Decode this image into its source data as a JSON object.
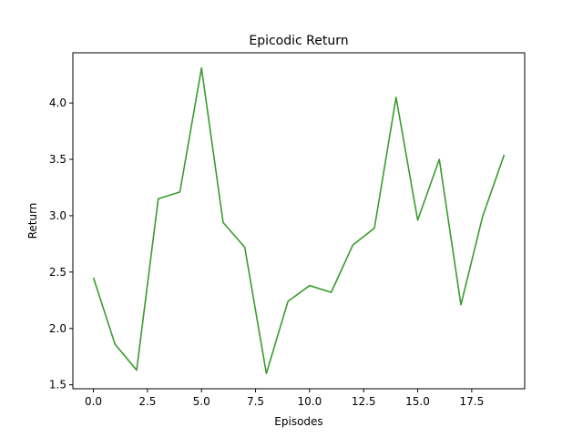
{
  "chart_data": {
    "type": "line",
    "title": "Epicodic Return",
    "xlabel": "Episodes",
    "ylabel": "Return",
    "xlim": [
      -0.95,
      19.95
    ],
    "ylim": [
      1.465,
      4.445
    ],
    "grid": false,
    "xticks": [
      0.0,
      2.5,
      5.0,
      7.5,
      10.0,
      12.5,
      15.0,
      17.5
    ],
    "xtick_labels": [
      "0.0",
      "2.5",
      "5.0",
      "7.5",
      "10.0",
      "12.5",
      "15.0",
      "17.5"
    ],
    "yticks": [
      1.5,
      2.0,
      2.5,
      3.0,
      3.5,
      4.0
    ],
    "ytick_labels": [
      "1.5",
      "2.0",
      "2.5",
      "3.0",
      "3.5",
      "4.0"
    ],
    "series": [
      {
        "color": "#3a9b2e",
        "x": [
          0,
          1,
          2,
          3,
          4,
          5,
          6,
          7,
          8,
          9,
          10,
          11,
          12,
          13,
          14,
          15,
          16,
          17,
          18,
          19
        ],
        "y": [
          2.45,
          1.86,
          1.63,
          3.15,
          3.21,
          4.31,
          2.94,
          2.72,
          1.6,
          2.24,
          2.38,
          2.32,
          2.74,
          2.89,
          4.05,
          2.96,
          3.5,
          2.21,
          2.99,
          3.54
        ]
      }
    ]
  }
}
